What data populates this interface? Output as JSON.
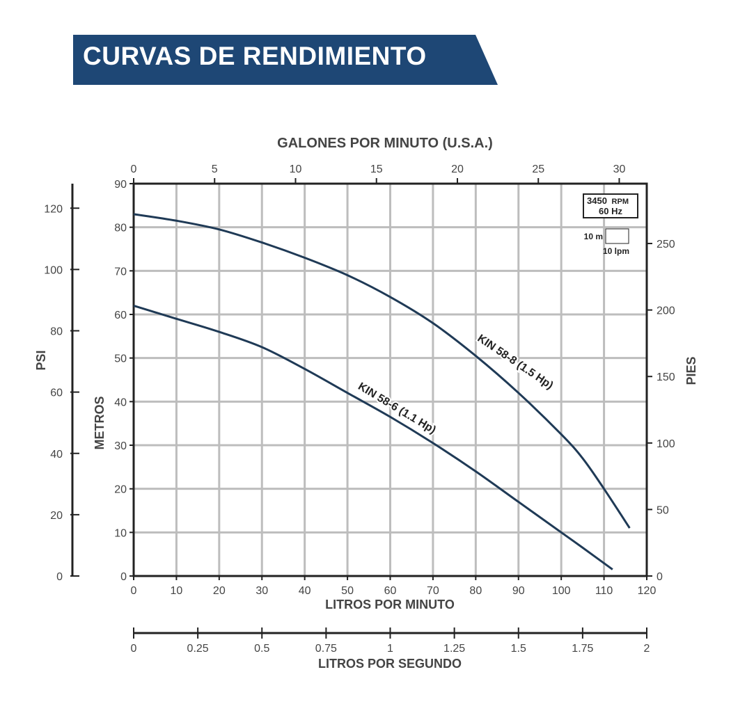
{
  "header": {
    "title": "CURVAS DE RENDIMIENTO"
  },
  "colors": {
    "banner": "#1e4775",
    "curve": "#1f3a56",
    "grid": "#bdbdbd",
    "axis": "#222222"
  },
  "chart_data": {
    "type": "line",
    "title": "",
    "xlabel": "LITROS POR MINUTO",
    "ylabel": "METROS",
    "x": {
      "label": "LITROS POR MINUTO",
      "range": [
        0,
        120
      ],
      "ticks": [
        0,
        10,
        20,
        30,
        40,
        50,
        60,
        70,
        80,
        90,
        100,
        110,
        120
      ]
    },
    "y": {
      "label": "METROS",
      "range": [
        0,
        90
      ],
      "ticks": [
        0,
        10,
        20,
        30,
        40,
        50,
        60,
        70,
        80,
        90
      ]
    },
    "x_top": {
      "label": "GALONES POR MINUTO (U.S.A.)",
      "range": [
        0,
        31.7
      ],
      "ticks": [
        0,
        5,
        10,
        15,
        20,
        25,
        30
      ]
    },
    "x_bottom2": {
      "label": "LITROS POR SEGUNDO",
      "range": [
        0,
        2
      ],
      "ticks": [
        "0",
        "0.25",
        "0.5",
        "0.75",
        "1",
        "1.25",
        "1.5",
        "1.75",
        "2"
      ]
    },
    "y_left2": {
      "label": "PSI",
      "range": [
        0,
        128
      ],
      "ticks": [
        0,
        20,
        40,
        60,
        80,
        100,
        120
      ]
    },
    "y_right": {
      "label": "PIES",
      "range": [
        0,
        295
      ],
      "ticks": [
        0,
        50,
        100,
        150,
        200,
        250
      ]
    },
    "grid": true,
    "info_box": {
      "rpm_value": "3450",
      "rpm_unit": "RPM",
      "hz": "60 Hz",
      "scale_y": "10 m",
      "scale_x": "10 lpm"
    },
    "series": [
      {
        "name": "KIN 58-8 (1.5 Hp)",
        "x": [
          0,
          10,
          20,
          30,
          40,
          50,
          60,
          70,
          80,
          90,
          100,
          105,
          110,
          116
        ],
        "y": [
          83,
          81.5,
          79.5,
          76.5,
          73,
          69,
          64,
          58,
          50.5,
          42,
          32.5,
          27,
          20,
          11
        ]
      },
      {
        "name": "KIN 58-6 (1.1 Hp)",
        "x": [
          0,
          10,
          20,
          30,
          40,
          50,
          60,
          70,
          80,
          90,
          100,
          105,
          112
        ],
        "y": [
          62,
          59,
          56,
          52.5,
          47.5,
          42,
          36.5,
          30.5,
          24,
          17,
          10,
          6.5,
          1.5
        ]
      }
    ]
  }
}
